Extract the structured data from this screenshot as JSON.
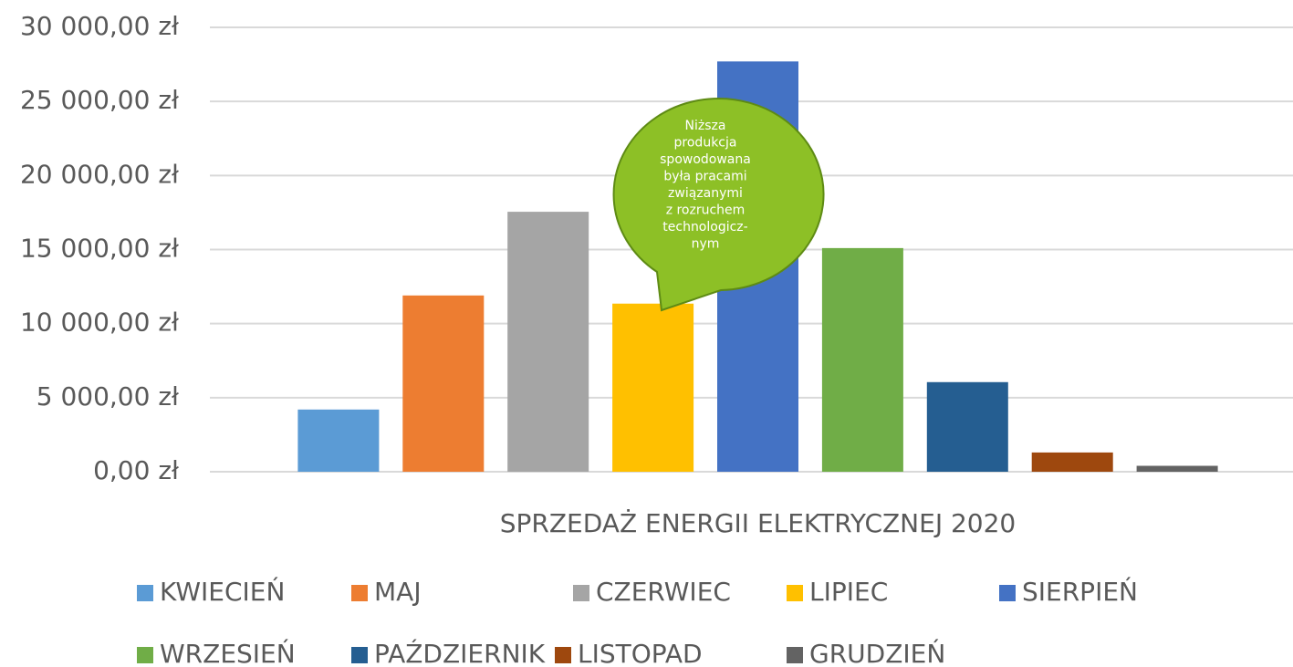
{
  "chart_data": {
    "type": "bar",
    "categories": [
      "SPRZEDAŻ ENERGII ELEKTRYCZNEJ 2020"
    ],
    "series": [
      {
        "name": "KWIECIEŃ",
        "color": "#5b9bd5",
        "values": [
          4200
        ]
      },
      {
        "name": "MAJ",
        "color": "#ed7d31",
        "values": [
          11900
        ]
      },
      {
        "name": "CZERWIEC",
        "color": "#a5a5a5",
        "values": [
          17550
        ]
      },
      {
        "name": "LIPIEC",
        "color": "#ffc000",
        "values": [
          11350
        ]
      },
      {
        "name": "SIERPIEŃ",
        "color": "#4472c4",
        "values": [
          27700
        ]
      },
      {
        "name": "WRZESIEŃ",
        "color": "#70ad47",
        "values": [
          15100
        ]
      },
      {
        "name": "PAŹDZIERNIK",
        "color": "#255e91",
        "values": [
          6050
        ]
      },
      {
        "name": "LISTOPAD",
        "color": "#9e480e",
        "values": [
          1300
        ]
      },
      {
        "name": "GRUDZIEŃ",
        "color": "#636363",
        "values": [
          400
        ]
      }
    ],
    "ylim": [
      0,
      30000
    ],
    "yticks": [
      {
        "value": 0,
        "label": "0,00 zł"
      },
      {
        "value": 5000,
        "label": "5 000,00 zł"
      },
      {
        "value": 10000,
        "label": "10 000,00 zł"
      },
      {
        "value": 15000,
        "label": "15 000,00 zł"
      },
      {
        "value": 20000,
        "label": "20 000,00 zł"
      },
      {
        "value": 25000,
        "label": "25 000,00 zł"
      },
      {
        "value": 30000,
        "label": "30 000,00 zł"
      }
    ],
    "grid": true,
    "legend": "bottom",
    "annotation": [
      "Niższa",
      "produkcja",
      "spowodowana",
      "była pracami",
      "związanymi",
      "z rozruchem",
      "technologicz-",
      "nym"
    ]
  }
}
